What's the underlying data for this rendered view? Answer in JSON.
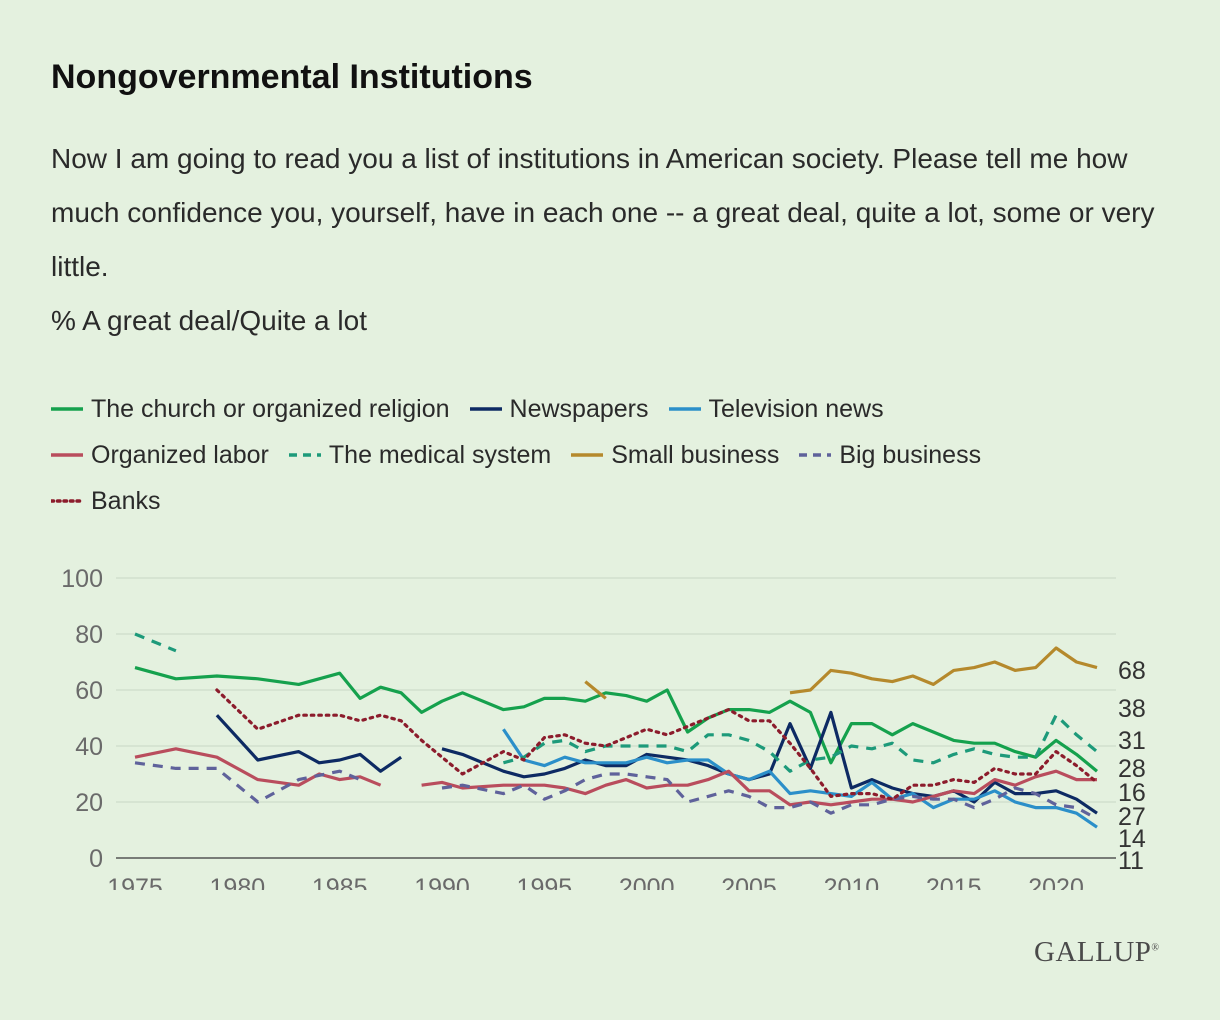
{
  "title": "Nongovernmental Institutions",
  "subtitle": "Now I am going to read you a list of institutions in American society. Please tell me how much confidence you, yourself, have in each one -- a great deal, quite a lot, some or very little.",
  "measure": "% A great deal/Quite a lot",
  "logo": "GALLUP",
  "chart_data": {
    "type": "line",
    "xlim": [
      1975,
      2022
    ],
    "ylim": [
      0,
      100
    ],
    "x_ticks": [
      1975,
      1980,
      1985,
      1990,
      1995,
      2000,
      2005,
      2010,
      2015,
      2020
    ],
    "y_ticks": [
      0,
      20,
      40,
      60,
      80,
      100
    ],
    "end_labels": [
      "68",
      "38",
      "31",
      "28",
      "16",
      "27",
      "14",
      "11"
    ],
    "series": [
      {
        "name": "The church or organized religion",
        "color": "#15a14d",
        "dash": "solid",
        "points": [
          [
            1975,
            68
          ],
          [
            1977,
            64
          ],
          [
            1979,
            65
          ],
          [
            1981,
            64
          ],
          [
            1983,
            62
          ],
          [
            1985,
            66
          ],
          [
            1986,
            57
          ],
          [
            1987,
            61
          ],
          [
            1988,
            59
          ],
          [
            1989,
            52
          ],
          [
            1990,
            56
          ],
          [
            1991,
            59
          ],
          [
            1993,
            53
          ],
          [
            1994,
            54
          ],
          [
            1995,
            57
          ],
          [
            1996,
            57
          ],
          [
            1997,
            56
          ],
          [
            1998,
            59
          ],
          [
            1999,
            58
          ],
          [
            2000,
            56
          ],
          [
            2001,
            60
          ],
          [
            2002,
            45
          ],
          [
            2003,
            50
          ],
          [
            2004,
            53
          ],
          [
            2005,
            53
          ],
          [
            2006,
            52
          ],
          [
            2007,
            56
          ],
          [
            2008,
            52
          ],
          [
            2009,
            34
          ],
          [
            2010,
            48
          ],
          [
            2011,
            48
          ],
          [
            2012,
            44
          ],
          [
            2013,
            48
          ],
          [
            2014,
            45
          ],
          [
            2015,
            42
          ],
          [
            2016,
            41
          ],
          [
            2017,
            41
          ],
          [
            2018,
            38
          ],
          [
            2019,
            36
          ],
          [
            2020,
            42
          ],
          [
            2021,
            37
          ],
          [
            2022,
            31
          ]
        ]
      },
      {
        "name": "Newspapers",
        "color": "#0d2a63",
        "dash": "solid",
        "points": [
          [
            1979,
            51
          ],
          [
            1981,
            35
          ],
          [
            1983,
            38
          ],
          [
            1984,
            34
          ],
          [
            1985,
            35
          ],
          [
            1986,
            37
          ],
          [
            1987,
            31
          ],
          [
            1988,
            36
          ],
          null,
          [
            1990,
            39
          ],
          [
            1991,
            37
          ],
          [
            1993,
            31
          ],
          [
            1994,
            29
          ],
          [
            1995,
            30
          ],
          [
            1996,
            32
          ],
          [
            1997,
            35
          ],
          [
            1998,
            33
          ],
          [
            1999,
            33
          ],
          [
            2000,
            37
          ],
          [
            2001,
            36
          ],
          [
            2002,
            35
          ],
          [
            2003,
            33
          ],
          [
            2004,
            30
          ],
          [
            2005,
            28
          ],
          [
            2006,
            30
          ],
          [
            2007,
            48
          ],
          [
            2008,
            32
          ],
          [
            2009,
            52
          ],
          [
            2010,
            25
          ],
          [
            2011,
            28
          ],
          [
            2012,
            25
          ],
          [
            2013,
            23
          ],
          [
            2014,
            22
          ],
          [
            2015,
            24
          ],
          [
            2016,
            20
          ],
          [
            2017,
            27
          ],
          [
            2018,
            23
          ],
          [
            2019,
            23
          ],
          [
            2020,
            24
          ],
          [
            2021,
            21
          ],
          [
            2022,
            16
          ]
        ]
      },
      {
        "name": "Television news",
        "color": "#2b8fc9",
        "dash": "solid",
        "points": [
          [
            1993,
            46
          ],
          [
            1994,
            35
          ],
          [
            1995,
            33
          ],
          [
            1996,
            36
          ],
          [
            1997,
            34
          ],
          [
            1998,
            34
          ],
          [
            1999,
            34
          ],
          [
            2000,
            36
          ],
          [
            2001,
            34
          ],
          [
            2002,
            35
          ],
          [
            2003,
            35
          ],
          [
            2004,
            30
          ],
          [
            2005,
            28
          ],
          [
            2006,
            31
          ],
          [
            2007,
            23
          ],
          [
            2008,
            24
          ],
          [
            2009,
            23
          ],
          [
            2010,
            22
          ],
          [
            2011,
            27
          ],
          [
            2012,
            21
          ],
          [
            2013,
            23
          ],
          [
            2014,
            18
          ],
          [
            2015,
            21
          ],
          [
            2016,
            21
          ],
          [
            2017,
            24
          ],
          [
            2018,
            20
          ],
          [
            2019,
            18
          ],
          [
            2020,
            18
          ],
          [
            2021,
            16
          ],
          [
            2022,
            11
          ]
        ]
      },
      {
        "name": "Organized labor",
        "color": "#b94d5d",
        "dash": "solid",
        "points": [
          [
            1975,
            36
          ],
          [
            1977,
            39
          ],
          [
            1979,
            36
          ],
          [
            1981,
            28
          ],
          [
            1983,
            26
          ],
          [
            1984,
            30
          ],
          [
            1985,
            28
          ],
          [
            1986,
            29
          ],
          [
            1987,
            26
          ],
          null,
          [
            1989,
            26
          ],
          [
            1990,
            27
          ],
          [
            1991,
            25
          ],
          [
            1993,
            26
          ],
          [
            1994,
            26
          ],
          [
            1995,
            26
          ],
          [
            1996,
            25
          ],
          [
            1997,
            23
          ],
          [
            1998,
            26
          ],
          [
            1999,
            28
          ],
          [
            2000,
            25
          ],
          [
            2001,
            26
          ],
          [
            2002,
            26
          ],
          [
            2003,
            28
          ],
          [
            2004,
            31
          ],
          [
            2005,
            24
          ],
          [
            2006,
            24
          ],
          [
            2007,
            19
          ],
          [
            2008,
            20
          ],
          [
            2009,
            19
          ],
          [
            2010,
            20
          ],
          [
            2011,
            21
          ],
          [
            2012,
            21
          ],
          [
            2013,
            20
          ],
          [
            2014,
            22
          ],
          [
            2015,
            24
          ],
          [
            2016,
            23
          ],
          [
            2017,
            28
          ],
          [
            2018,
            26
          ],
          [
            2019,
            29
          ],
          [
            2020,
            31
          ],
          [
            2021,
            28
          ],
          [
            2022,
            28
          ]
        ]
      },
      {
        "name": "The medical system",
        "color": "#1d9a7a",
        "dash": "dashed",
        "points": [
          [
            1975,
            80
          ],
          [
            1977,
            74
          ],
          null,
          [
            1993,
            34
          ],
          [
            1994,
            36
          ],
          [
            1995,
            41
          ],
          [
            1996,
            42
          ],
          [
            1997,
            38
          ],
          [
            1998,
            40
          ],
          [
            1999,
            40
          ],
          [
            2000,
            40
          ],
          [
            2001,
            40
          ],
          [
            2002,
            38
          ],
          [
            2003,
            44
          ],
          [
            2004,
            44
          ],
          [
            2005,
            42
          ],
          [
            2006,
            38
          ],
          [
            2007,
            31
          ],
          [
            2008,
            35
          ],
          [
            2009,
            36
          ],
          [
            2010,
            40
          ],
          [
            2011,
            39
          ],
          [
            2012,
            41
          ],
          [
            2013,
            35
          ],
          [
            2014,
            34
          ],
          [
            2015,
            37
          ],
          [
            2016,
            39
          ],
          [
            2017,
            37
          ],
          [
            2018,
            36
          ],
          [
            2019,
            36
          ],
          [
            2020,
            51
          ],
          [
            2021,
            44
          ],
          [
            2022,
            38
          ]
        ]
      },
      {
        "name": "Small business",
        "color": "#b5892c",
        "dash": "solid",
        "points": [
          [
            1997,
            63
          ],
          [
            1998,
            57
          ],
          null,
          [
            2007,
            59
          ],
          [
            2008,
            60
          ],
          [
            2009,
            67
          ],
          [
            2010,
            66
          ],
          [
            2011,
            64
          ],
          [
            2012,
            63
          ],
          [
            2013,
            65
          ],
          [
            2014,
            62
          ],
          [
            2015,
            67
          ],
          [
            2016,
            68
          ],
          [
            2017,
            70
          ],
          [
            2018,
            67
          ],
          [
            2019,
            68
          ],
          [
            2020,
            75
          ],
          [
            2021,
            70
          ],
          [
            2022,
            68
          ]
        ]
      },
      {
        "name": "Big business",
        "color": "#5f629b",
        "dash": "dashed",
        "points": [
          [
            1975,
            34
          ],
          [
            1977,
            32
          ],
          [
            1979,
            32
          ],
          [
            1981,
            20
          ],
          [
            1983,
            28
          ],
          [
            1985,
            31
          ],
          [
            1986,
            28
          ],
          null,
          [
            1990,
            25
          ],
          [
            1991,
            26
          ],
          [
            1993,
            23
          ],
          [
            1994,
            26
          ],
          [
            1995,
            21
          ],
          [
            1996,
            24
          ],
          [
            1997,
            28
          ],
          [
            1998,
            30
          ],
          [
            1999,
            30
          ],
          [
            2000,
            29
          ],
          [
            2001,
            28
          ],
          [
            2002,
            20
          ],
          [
            2003,
            22
          ],
          [
            2004,
            24
          ],
          [
            2005,
            22
          ],
          [
            2006,
            18
          ],
          [
            2007,
            18
          ],
          [
            2008,
            20
          ],
          [
            2009,
            16
          ],
          [
            2010,
            19
          ],
          [
            2011,
            19
          ],
          [
            2012,
            21
          ],
          [
            2013,
            22
          ],
          [
            2014,
            21
          ],
          [
            2015,
            21
          ],
          [
            2016,
            18
          ],
          [
            2017,
            21
          ],
          [
            2018,
            25
          ],
          [
            2019,
            23
          ],
          [
            2020,
            19
          ],
          [
            2021,
            18
          ],
          [
            2022,
            14
          ]
        ]
      },
      {
        "name": "Banks",
        "color": "#8c1c2c",
        "dash": "dotted",
        "points": [
          [
            1979,
            60
          ],
          [
            1981,
            46
          ],
          [
            1983,
            51
          ],
          [
            1984,
            51
          ],
          [
            1985,
            51
          ],
          [
            1986,
            49
          ],
          [
            1987,
            51
          ],
          [
            1988,
            49
          ],
          [
            1989,
            42
          ],
          [
            1990,
            36
          ],
          [
            1991,
            30
          ],
          [
            1993,
            38
          ],
          [
            1994,
            35
          ],
          [
            1995,
            43
          ],
          [
            1996,
            44
          ],
          [
            1997,
            41
          ],
          [
            1998,
            40
          ],
          [
            1999,
            43
          ],
          [
            2000,
            46
          ],
          [
            2001,
            44
          ],
          [
            2002,
            47
          ],
          [
            2003,
            50
          ],
          [
            2004,
            53
          ],
          [
            2005,
            49
          ],
          [
            2006,
            49
          ],
          [
            2007,
            41
          ],
          [
            2008,
            32
          ],
          [
            2009,
            22
          ],
          [
            2010,
            23
          ],
          [
            2011,
            23
          ],
          [
            2012,
            21
          ],
          [
            2013,
            26
          ],
          [
            2014,
            26
          ],
          [
            2015,
            28
          ],
          [
            2016,
            27
          ],
          [
            2017,
            32
          ],
          [
            2018,
            30
          ],
          [
            2019,
            30
          ],
          [
            2020,
            38
          ],
          [
            2021,
            33
          ],
          [
            2022,
            27
          ]
        ]
      }
    ]
  }
}
